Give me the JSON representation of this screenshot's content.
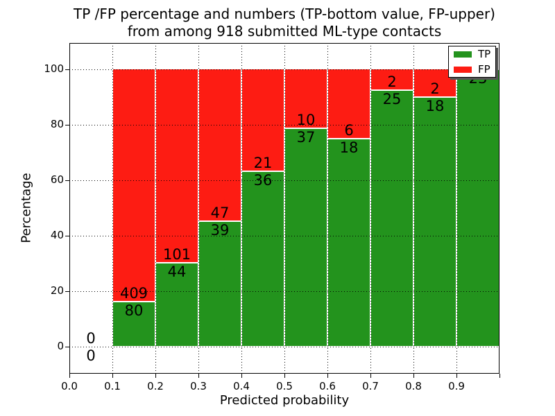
{
  "figure": {
    "title_lines": [
      "TP /FP percentage and numbers (TP-bottom value, FP-upper)",
      "from among 918 submitted ML-type contacts"
    ]
  },
  "chart_data": {
    "type": "bar",
    "stacked": true,
    "orientation": "vertical",
    "normalized_to": "100% per bin",
    "title": "TP /FP percentage and numbers (TP-bottom value, FP-upper) from among 918 submitted ML-type contacts",
    "xlabel": "Predicted probability",
    "ylabel": "Percentage",
    "total_contacts": 918,
    "bins": [
      "0.0-0.1",
      "0.1-0.2",
      "0.2-0.3",
      "0.3-0.4",
      "0.4-0.5",
      "0.5-0.6",
      "0.6-0.7",
      "0.7-0.8",
      "0.8-0.9",
      "0.9-1.0"
    ],
    "series": [
      {
        "name": "TP",
        "color": "#23931d",
        "counts": [
          0,
          80,
          44,
          39,
          36,
          37,
          18,
          25,
          18,
          23
        ]
      },
      {
        "name": "FP",
        "color": "#fd1c13",
        "counts": [
          0,
          409,
          101,
          47,
          21,
          10,
          6,
          2,
          2,
          0
        ]
      }
    ],
    "tp_percent": [
      0,
      16.4,
      30.3,
      45.3,
      63.2,
      78.7,
      75.0,
      92.6,
      90.0,
      100.0
    ],
    "bar_labels": [
      {
        "fp": "0",
        "tp": "0"
      },
      {
        "fp": "409",
        "tp": "80"
      },
      {
        "fp": "101",
        "tp": "44"
      },
      {
        "fp": "47",
        "tp": "39"
      },
      {
        "fp": "21",
        "tp": "36"
      },
      {
        "fp": "10",
        "tp": "37"
      },
      {
        "fp": "6",
        "tp": "18"
      },
      {
        "fp": "2",
        "tp": "25"
      },
      {
        "fp": "2",
        "tp": "18"
      },
      {
        "fp": null,
        "tp": "23"
      }
    ],
    "x_tick_labels": [
      "0.0",
      "0.1",
      "0.2",
      "0.3",
      "0.4",
      "0.5",
      "0.6",
      "0.7",
      "0.8",
      "0.9"
    ],
    "y_tick_labels": [
      "0",
      "20",
      "40",
      "60",
      "80",
      "100"
    ],
    "ylim": [
      0,
      100
    ],
    "grid": "dotted, both axes, drawn over bars",
    "legend": {
      "position": "upper right",
      "entries": [
        {
          "label": "TP",
          "color": "#23931d"
        },
        {
          "label": "FP",
          "color": "#fd1c13"
        }
      ]
    }
  }
}
